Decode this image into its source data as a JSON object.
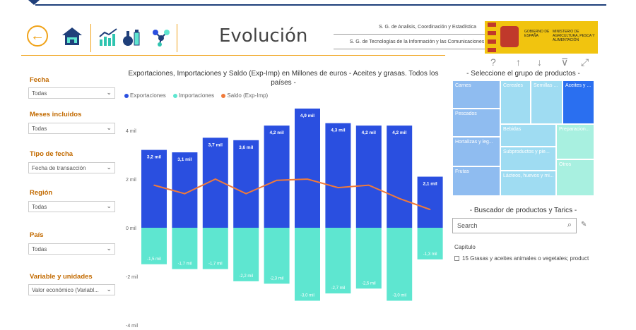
{
  "header": {
    "title": "Evolución",
    "org_line1": "S. G. de Analisis, Coordinación y Estadística",
    "org_line2": "S. G. de Tecnologías de la Información y las Comunicaciones",
    "logo_text_left": "GOBIERNO DE ESPAÑA",
    "logo_text_right": "MINISTERIO DE AGRICULTURA, PESCA Y ALIMENTACIÓN",
    "icons": [
      "back-arrow-icon",
      "home-icon",
      "trend-chart-icon",
      "lab-flasks-icon",
      "molecule-icon"
    ]
  },
  "toolbar": {
    "icons": [
      "help-icon",
      "arrow-up-icon",
      "arrow-down-icon",
      "filter-icon",
      "expand-icon"
    ],
    "glyphs": [
      "?",
      "↑",
      "↓",
      "⊽",
      "⤢"
    ]
  },
  "filters": [
    {
      "label": "Fecha",
      "value": "Todas"
    },
    {
      "label": "Meses incluidos",
      "value": "Todas"
    },
    {
      "label": "Tipo de fecha",
      "value": "Fecha de transacción"
    },
    {
      "label": "Región",
      "value": "Todas"
    },
    {
      "label": "País",
      "value": "Todas"
    },
    {
      "label": "Variable y unidades",
      "value": "Valor económico (Variabl..."
    }
  ],
  "chart_data": {
    "type": "bar",
    "title": "Exportaciones, Importaciones y Saldo (Exp-Imp) en Millones de euros - Aceites y grasas. Todos los países -",
    "series": [
      {
        "name": "Exportaciones",
        "color": "#2a4fe0",
        "values": [
          3.2,
          3.1,
          3.7,
          3.6,
          4.2,
          4.9,
          4.3,
          4.2,
          4.2,
          2.1
        ],
        "labels": [
          "3,2 mil",
          "3,1 mil",
          "3,7 mil",
          "3,6 mil",
          "4,2 mil",
          "4,9 mil",
          "4,3 mil",
          "4,2 mil",
          "4,2 mil",
          "2,1 mil"
        ]
      },
      {
        "name": "Importaciones",
        "color": "#5ee6d0",
        "values": [
          -1.5,
          -1.7,
          -1.7,
          -2.2,
          -2.3,
          -3.0,
          -2.7,
          -2.5,
          -3.0,
          -1.3
        ],
        "labels": [
          "-1,5 mil",
          "-1,7 mil",
          "-1,7 mil",
          "-2,2 mil",
          "-2,3 mil",
          "-3,0 mil",
          "-2,7 mil",
          "-2,5 mil",
          "-3,0 mil",
          "-1,3 mil"
        ]
      },
      {
        "name": "Saldo (Exp-Imp)",
        "color": "#f07a3a",
        "values": [
          1.75,
          1.4,
          2.0,
          1.4,
          1.95,
          2.0,
          1.65,
          1.75,
          1.2,
          0.75
        ]
      }
    ],
    "yticks": [
      "4 mil",
      "2 mil",
      "0 mil",
      "-2 mil",
      "-4 mil"
    ],
    "ylim": [
      -4,
      5
    ],
    "grid": false,
    "legend": "top-left"
  },
  "right_panel": {
    "group_title": "- Seleccione el grupo de productos -",
    "treemap": [
      "Carnes",
      "Pescados",
      "Hortalizas y leg...",
      "Frutas",
      "Cereales",
      "Semillas ...",
      "Aceites y ...",
      "Bebidas",
      "Subproductos y pie...",
      "Lácteos, huevos y mi...",
      "Preparacion...",
      "Otros"
    ],
    "search_title": "- Buscador de productos y Tarics -",
    "search_placeholder": "Search",
    "capitulo_label": "Capítulo",
    "capitulo_item": "15 Grasas y aceites animales o vegetales; product"
  }
}
